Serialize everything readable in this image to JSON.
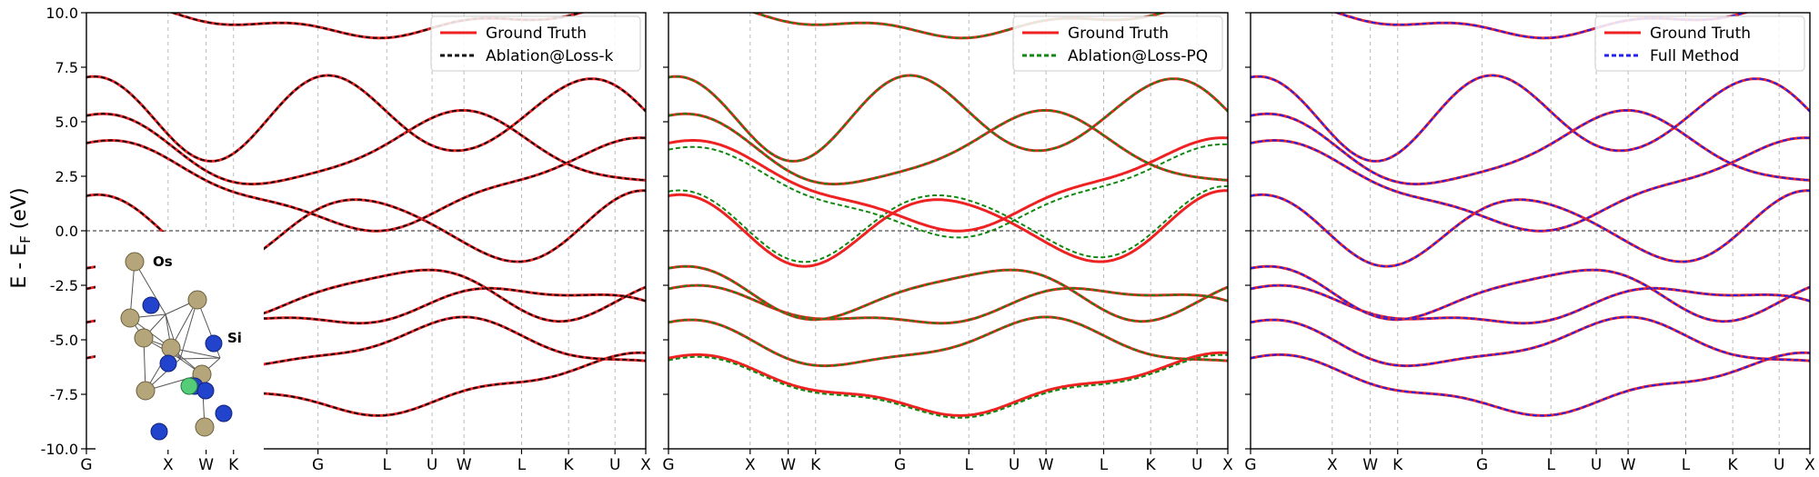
{
  "figure": {
    "ylabel_main": "E - E",
    "ylabel_sub": "F",
    "ylabel_unit": " (eV)"
  },
  "inset": {
    "atom_label_os": "Os",
    "atom_label_si": "Si"
  },
  "chart_data": [
    {
      "type": "line",
      "title": "",
      "xlabel": "",
      "ylabel": "E - EF (eV)",
      "ylim": [
        -10.0,
        10.0
      ],
      "yticks": [
        "10.0",
        "7.5",
        "5.0",
        "2.5",
        "0.0",
        "-2.5",
        "-5.0",
        "-7.5",
        "-10.0"
      ],
      "xticks": [
        "G",
        "X",
        "W",
        "K",
        "G",
        "L",
        "U",
        "W",
        "L",
        "K",
        "U",
        "X"
      ],
      "grid": "vertical dashed at high-symmetry points",
      "fermi_line": 0.0,
      "legend_position": "top-right",
      "legend": [
        "Ground Truth",
        "Ablation@Loss-k"
      ],
      "colors": {
        "truth": "#ee2222",
        "pred": "#111111"
      },
      "series": [
        {
          "name": "Ground Truth",
          "style": "solid",
          "band_energies_at_G": [
            -6.8,
            -5.0,
            -3.3,
            -2.6,
            0.4,
            2.5,
            4.0,
            5.6,
            9.8
          ]
        },
        {
          "name": "Ablation@Loss-k",
          "style": "dashed",
          "band_energies_at_G": [
            -6.8,
            -5.0,
            -3.3,
            -2.6,
            0.4,
            2.5,
            4.0,
            5.6,
            9.8
          ]
        }
      ]
    },
    {
      "type": "line",
      "title": "",
      "xlabel": "",
      "ylabel": "",
      "ylim": [
        -10.0,
        10.0
      ],
      "xticks": [
        "G",
        "X",
        "W",
        "K",
        "G",
        "L",
        "U",
        "W",
        "L",
        "K",
        "U",
        "X"
      ],
      "grid": "vertical dashed at high-symmetry points",
      "fermi_line": 0.0,
      "legend_position": "top-right",
      "legend": [
        "Ground Truth",
        "Ablation@Loss-PQ"
      ],
      "colors": {
        "truth": "#ee2222",
        "pred": "#118811"
      },
      "series": [
        {
          "name": "Ground Truth",
          "style": "solid",
          "band_energies_at_G": [
            -6.8,
            -5.0,
            -3.3,
            -2.6,
            0.4,
            2.5,
            4.0,
            5.6,
            9.8
          ]
        },
        {
          "name": "Ablation@Loss-PQ",
          "style": "dashed",
          "band_energies_at_G": [
            -6.9,
            -5.0,
            -3.3,
            -2.6,
            0.6,
            2.2,
            4.0,
            5.6,
            9.8
          ]
        }
      ]
    },
    {
      "type": "line",
      "title": "",
      "xlabel": "",
      "ylabel": "",
      "ylim": [
        -10.0,
        10.0
      ],
      "xticks": [
        "G",
        "X",
        "W",
        "K",
        "G",
        "L",
        "U",
        "W",
        "L",
        "K",
        "U",
        "X"
      ],
      "grid": "vertical dashed at high-symmetry points",
      "fermi_line": 0.0,
      "legend_position": "top-right",
      "legend": [
        "Ground Truth",
        "Full Method"
      ],
      "colors": {
        "truth": "#ee2222",
        "pred": "#2222ee"
      },
      "series": [
        {
          "name": "Ground Truth",
          "style": "solid",
          "band_energies_at_G": [
            -6.8,
            -5.0,
            -3.3,
            -2.6,
            0.4,
            2.5,
            4.0,
            5.6,
            9.8
          ]
        },
        {
          "name": "Full Method",
          "style": "dashed",
          "band_energies_at_G": [
            -6.8,
            -5.0,
            -3.3,
            -2.6,
            0.4,
            2.5,
            4.0,
            5.6,
            9.8
          ]
        }
      ]
    }
  ]
}
